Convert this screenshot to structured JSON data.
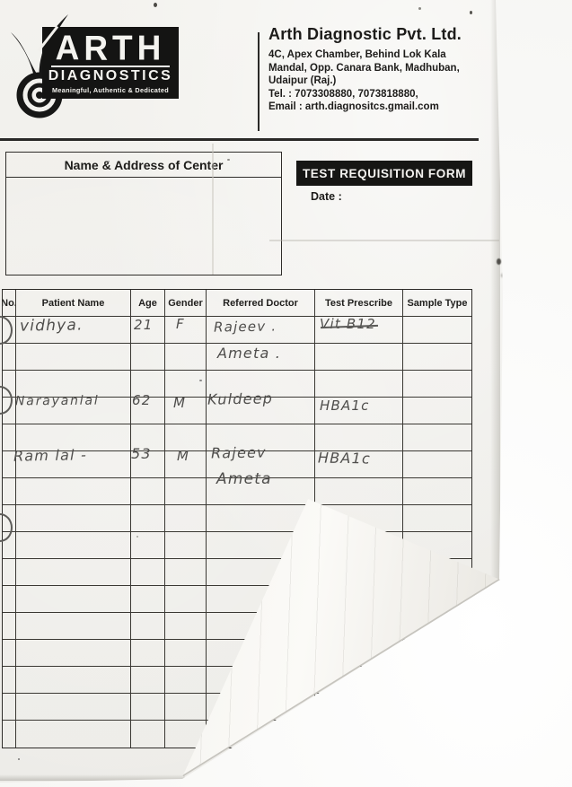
{
  "colors": {
    "paper": "#f1f0ec",
    "ink": "#1d1c1a",
    "badge_black": "#161614",
    "handwriting_gray": "#4f4e4c"
  },
  "logo": {
    "icon": "target-plant-icon",
    "name": "ARTH",
    "subtitle": "DIAGNOSTICS",
    "tagline": "Meaningful, Authentic & Dedicated"
  },
  "company": {
    "title": "Arth Diagnostic Pvt. Ltd.",
    "address_line1": "4C, Apex Chamber, Behind Lok Kala",
    "address_line2": "Mandal, Opp. Canara Bank, Madhuban,",
    "address_line3": "Udaipur (Raj.)",
    "tel": "Tel. : 7073308880, 7073818880,",
    "email": "Email : arth.diagnositcs.gmail.com"
  },
  "center_box": {
    "title": "Name & Address of Center"
  },
  "form": {
    "title": "TEST REQUISITION FORM",
    "date_label": "Date :"
  },
  "table": {
    "headers": [
      "No.",
      "Patient Name",
      "Age",
      "Gender",
      "Referred Doctor",
      "Test Prescribe",
      "Sample Type"
    ]
  },
  "entries": [
    {
      "patient": "vidhya.",
      "age": "21",
      "gender": "F",
      "doctor_line1": "Rajeev .",
      "doctor_line2": "Ameta .",
      "test": "Vit B12",
      "sample": ""
    },
    {
      "patient": "Narayanlal",
      "age": "62",
      "gender": "M",
      "doctor_line1": "Kuldeep",
      "doctor_line2": "",
      "test": "HBA1c",
      "sample": ""
    },
    {
      "patient": "Ram lal -",
      "age": "53",
      "gender": "M",
      "doctor_line1": "Rajeev",
      "doctor_line2": "Ameta",
      "test": "HBA1c",
      "sample": ""
    }
  ]
}
